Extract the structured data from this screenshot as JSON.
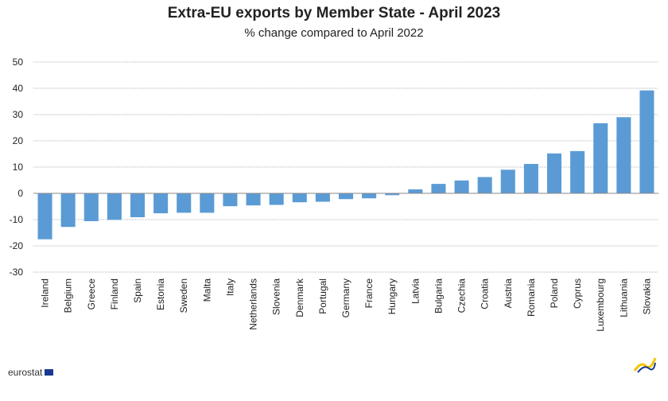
{
  "chart_data": {
    "type": "bar",
    "title": "Extra-EU exports by Member State - April 2023",
    "subtitle": "% change compared to April 2022",
    "xlabel": "",
    "ylabel": "",
    "ylim": [
      -30,
      50
    ],
    "yticks": [
      50,
      40,
      30,
      20,
      10,
      0,
      -10,
      -20,
      -30
    ],
    "grid": true,
    "bar_color": "#5b9bd5",
    "categories": [
      "Ireland",
      "Belgium",
      "Greece",
      "Finland",
      "Spain",
      "Estonia",
      "Sweden",
      "Malta",
      "Italy",
      "Netherlands",
      "Slovenia",
      "Denmark",
      "Portugal",
      "Germany",
      "France",
      "Hungary",
      "Latvia",
      "Bulgaria",
      "Czechia",
      "Croatia",
      "Austria",
      "Romania",
      "Poland",
      "Cyprus",
      "Luxembourg",
      "Lithuania",
      "Slovakia"
    ],
    "values": [
      -17.5,
      -12.8,
      -10.6,
      -10.1,
      -9.1,
      -7.6,
      -7.4,
      -7.4,
      -4.9,
      -4.6,
      -4.4,
      -3.4,
      -3.2,
      -2.2,
      -1.9,
      -0.7,
      1.5,
      3.6,
      4.9,
      6.2,
      9.0,
      11.2,
      15.2,
      16.1,
      26.7,
      29.0,
      39.2
    ]
  },
  "footer": {
    "logo_text": "eurostat",
    "flag_color": "#1a3a8f",
    "swoosh_colors": [
      "#f5c400",
      "#1a3a8f"
    ]
  }
}
